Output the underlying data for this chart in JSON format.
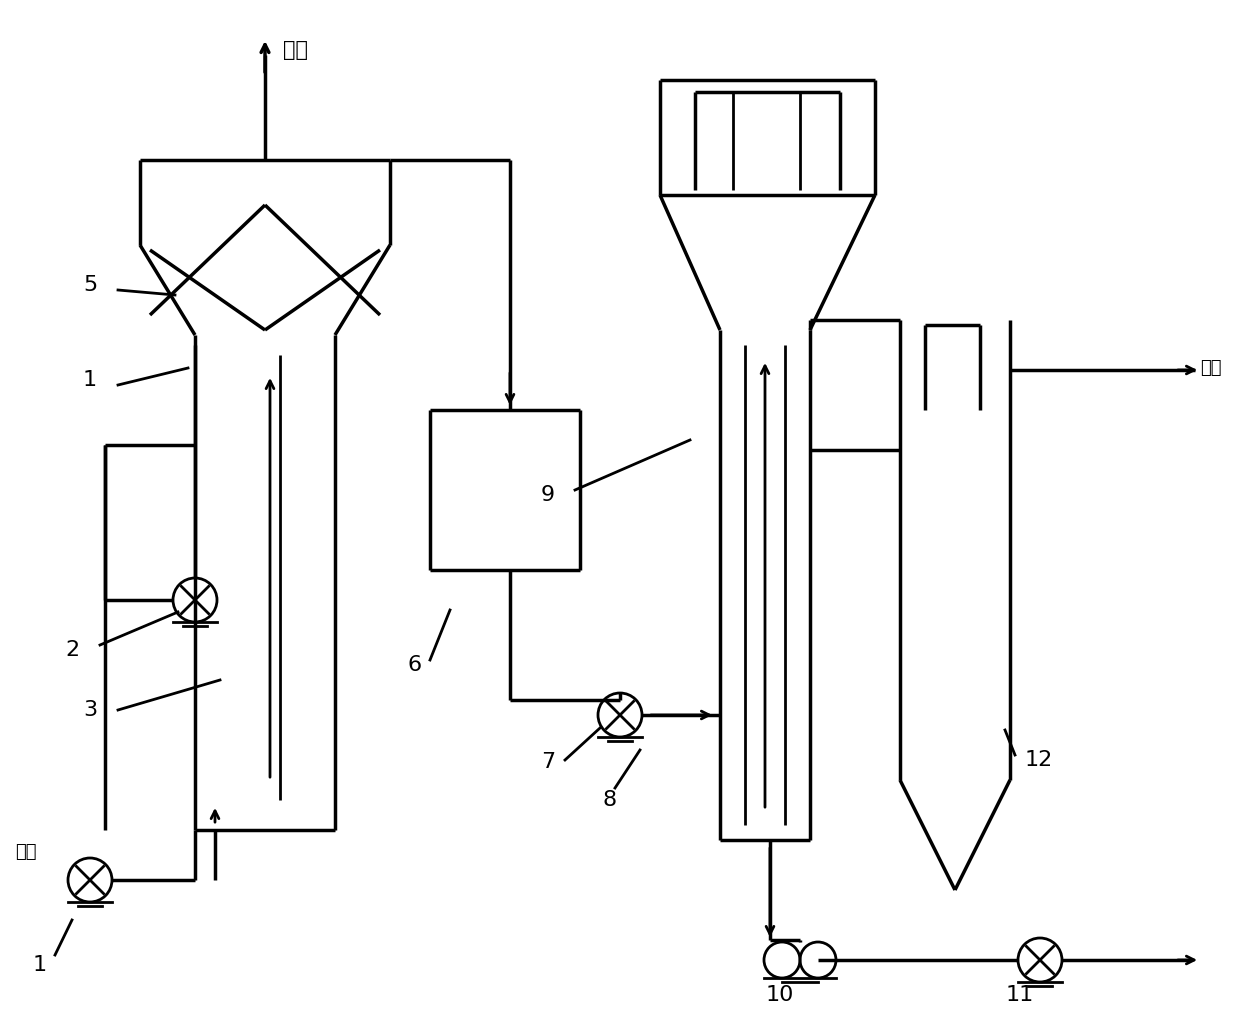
{
  "background": "#ffffff",
  "lc": "#000000",
  "lw": 2.0,
  "lw2": 2.5,
  "figsize": [
    12.4,
    10.32
  ],
  "dpi": 100,
  "labels": {
    "biogas": "沼气",
    "outlet": "出水",
    "inlet": "进水"
  },
  "numbers": [
    "1",
    "2",
    "3",
    "5",
    "6",
    "7",
    "8",
    "9",
    "10",
    "11",
    "12"
  ]
}
